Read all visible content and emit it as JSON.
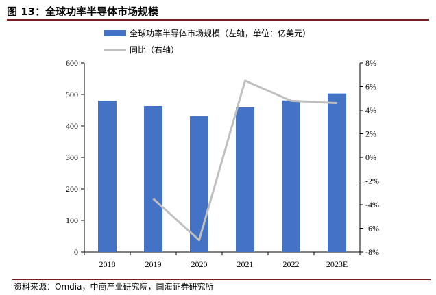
{
  "figure_title": "图 13：全球功率半导体市场规模",
  "source_note": "资料来源：Omdia，中商产业研究院，国海证券研究所",
  "chart_data": {
    "type": "bar",
    "categories": [
      "2018",
      "2019",
      "2020",
      "2021",
      "2022",
      "2023E"
    ],
    "series": [
      {
        "name": "全球功率半导体市场规模（左轴，单位：亿美元）",
        "type": "bar",
        "axis": "left",
        "values": [
          480,
          463,
          431,
          459,
          481,
          503
        ],
        "color": "#4472c4"
      },
      {
        "name": "同比（右轴）",
        "type": "line",
        "axis": "right",
        "values": [
          null,
          -3.5,
          -7.0,
          6.5,
          4.8,
          4.6
        ],
        "color": "#bfbfbf"
      }
    ],
    "y_left": {
      "ylim": [
        0,
        600
      ],
      "ticks": [
        0,
        100,
        200,
        300,
        400,
        500,
        600
      ],
      "tick_labels": [
        "0",
        "100",
        "200",
        "300",
        "400",
        "500",
        "600"
      ]
    },
    "y_right": {
      "ylim": [
        -8,
        8
      ],
      "ticks": [
        -8,
        -6,
        -4,
        -2,
        0,
        2,
        4,
        6,
        8
      ],
      "tick_labels": [
        "-8%",
        "-6%",
        "-4%",
        "-2%",
        "0%",
        "2%",
        "4%",
        "6%",
        "8%"
      ]
    },
    "legend_position": "top-left",
    "grid": false
  }
}
